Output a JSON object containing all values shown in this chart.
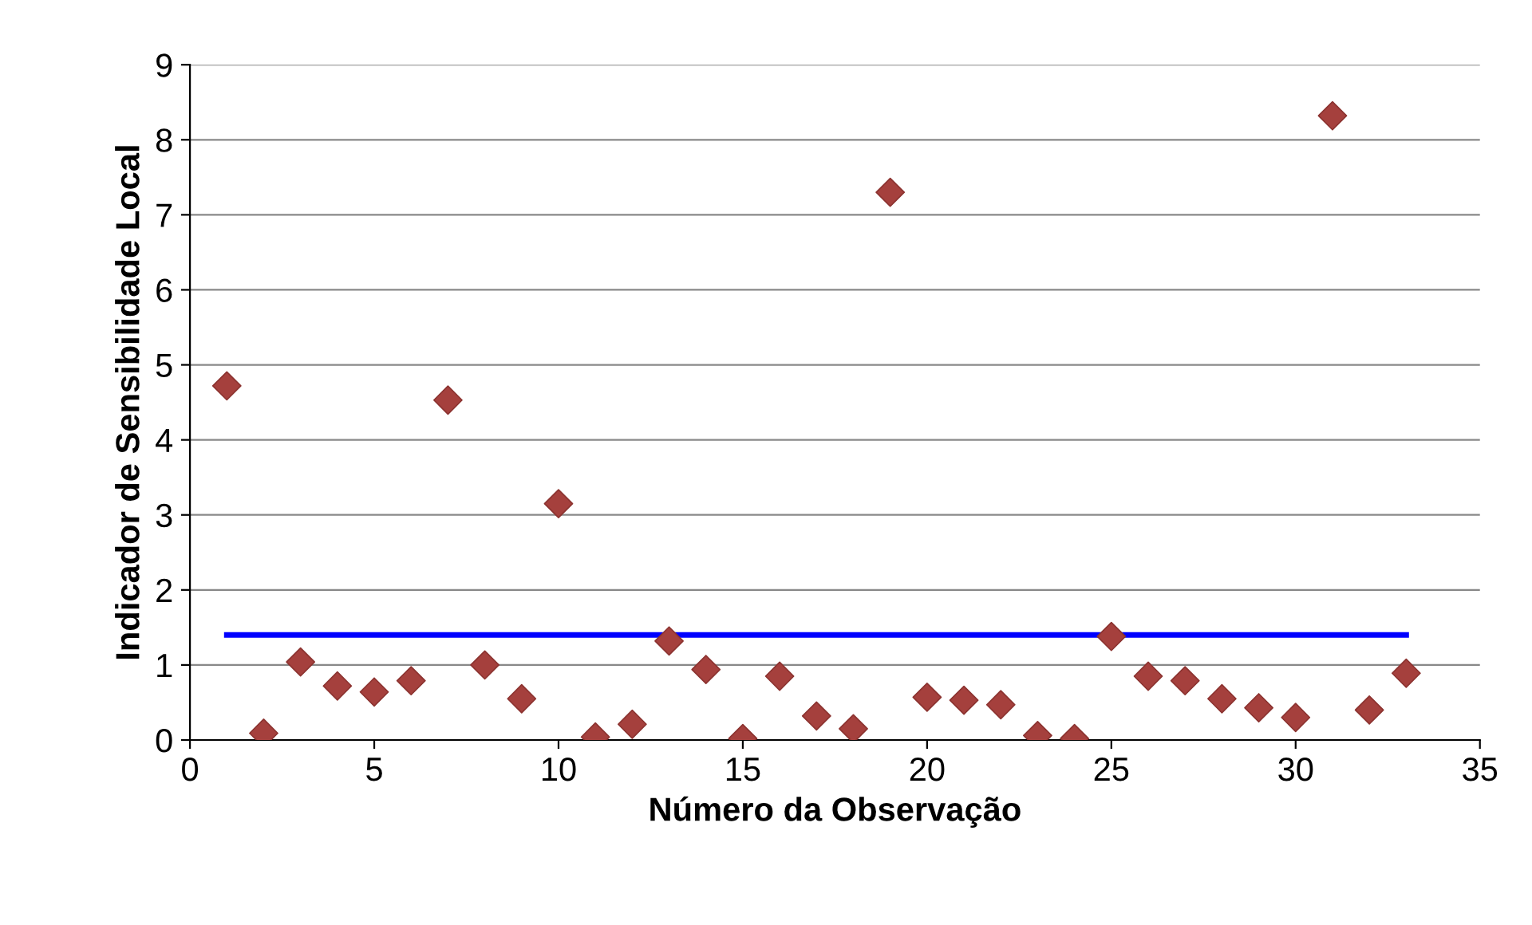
{
  "chart_data": {
    "type": "scatter",
    "xlabel": "Número da Observação",
    "ylabel": "Indicador de Sensibilidade Local",
    "xlim": [
      0,
      35
    ],
    "xticks": [
      0,
      5,
      10,
      15,
      20,
      25,
      30,
      35
    ],
    "ylim": [
      0,
      9
    ],
    "yticks": [
      0,
      1,
      2,
      3,
      4,
      5,
      6,
      7,
      8,
      9
    ],
    "grid": "y",
    "series": [
      {
        "marker": "diamond",
        "color": "#a5403d",
        "x": [
          1,
          2,
          3,
          4,
          5,
          6,
          7,
          8,
          9,
          10,
          11,
          12,
          13,
          14,
          15,
          16,
          17,
          18,
          19,
          20,
          21,
          22,
          23,
          24,
          25,
          26,
          27,
          28,
          29,
          30,
          31,
          32,
          33
        ],
        "values": [
          4.72,
          0.09,
          1.04,
          0.72,
          0.64,
          0.79,
          4.53,
          1.0,
          0.55,
          3.15,
          0.04,
          0.21,
          1.32,
          0.94,
          0.02,
          0.85,
          0.32,
          0.15,
          7.3,
          0.57,
          0.53,
          0.47,
          0.06,
          0.02,
          1.38,
          0.85,
          0.79,
          0.55,
          0.43,
          0.3,
          8.32,
          0.4,
          0.89
        ]
      },
      {
        "type": "line",
        "color": "#0000ff",
        "x": [
          1,
          33
        ],
        "values": [
          1.4,
          1.4
        ]
      }
    ]
  }
}
